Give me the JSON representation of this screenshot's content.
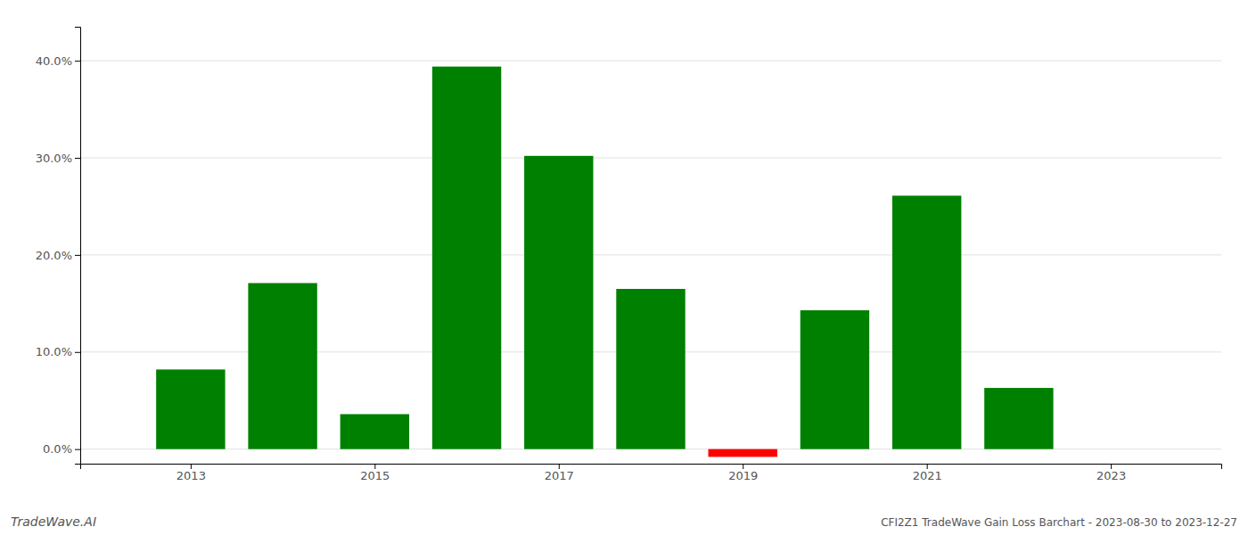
{
  "chart_data": {
    "type": "bar",
    "title": "CFI2Z1 TradeWave Gain Loss Barchart - 2023-08-30 to 2023-12-27",
    "annotations": [
      "TradeWave.AI"
    ],
    "x": [
      2013,
      2014,
      2015,
      2016,
      2017,
      2018,
      2019,
      2020,
      2021,
      2022
    ],
    "values": [
      0.082,
      0.171,
      0.036,
      0.394,
      0.302,
      0.165,
      -0.008,
      0.143,
      0.261,
      0.063
    ],
    "colors": [
      "#008000",
      "#008000",
      "#008000",
      "#008000",
      "#008000",
      "#008000",
      "#ff0000",
      "#008000",
      "#008000",
      "#008000"
    ],
    "xlim": [
      2011.8,
      2024.2
    ],
    "xticks": [
      2013,
      2015,
      2017,
      2019,
      2021,
      2023
    ],
    "ylim": [
      -0.015,
      0.435
    ],
    "yticks": [
      {
        "value": 0.0,
        "label": "0.0%"
      },
      {
        "value": 0.1,
        "label": "10.0%"
      },
      {
        "value": 0.2,
        "label": "20.0%"
      },
      {
        "value": 0.3,
        "label": "30.0%"
      },
      {
        "value": 0.4,
        "label": "40.0%"
      }
    ],
    "grid": true
  }
}
